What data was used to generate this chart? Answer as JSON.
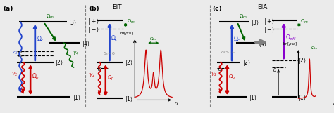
{
  "bg_color": "#ebebeb",
  "title_EIT": "EIT",
  "title_EIA": "EIA",
  "label_a": "(a)",
  "label_b": "(b)",
  "label_c": "(c)",
  "fig_w": 4.74,
  "fig_h": 1.61,
  "dpi": 100
}
